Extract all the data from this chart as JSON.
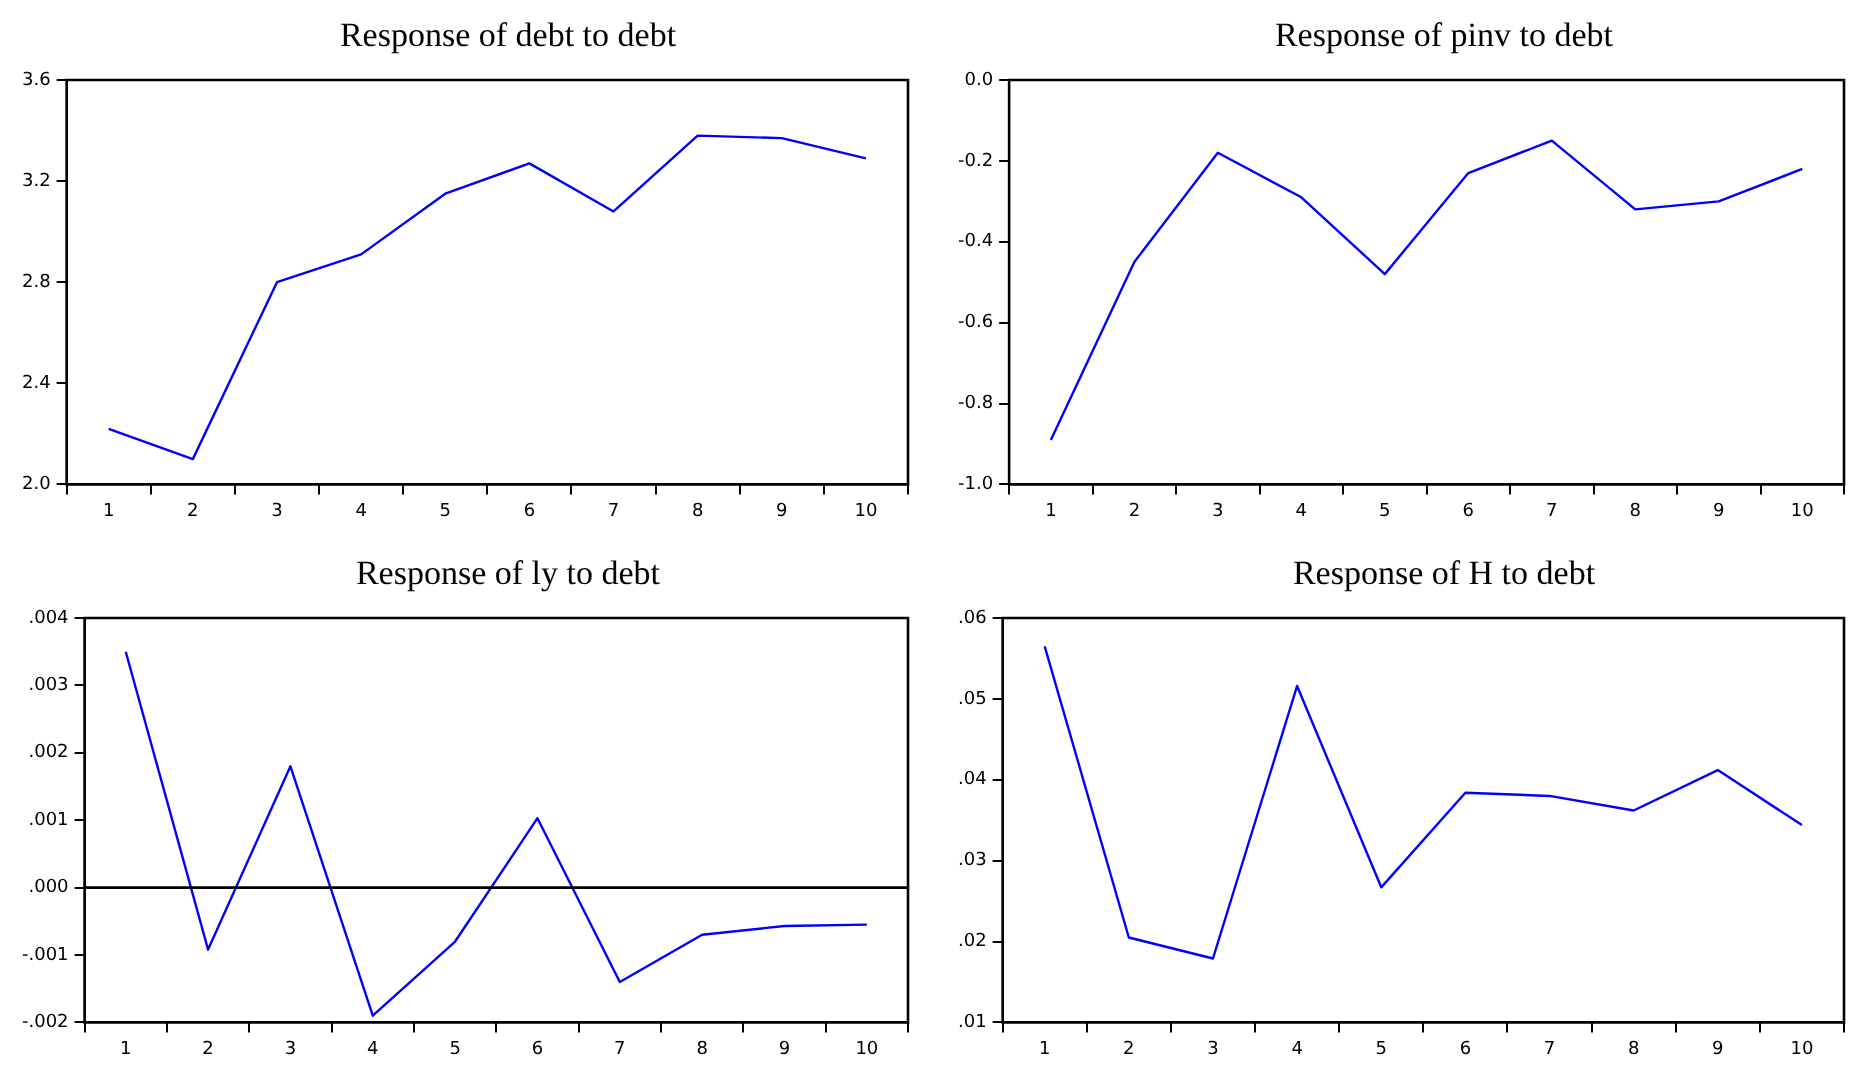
{
  "chart_data": [
    {
      "type": "line",
      "title": "Response of debt to debt",
      "categories": [
        "1",
        "2",
        "3",
        "4",
        "5",
        "6",
        "7",
        "8",
        "9",
        "10"
      ],
      "series": [
        {
          "color": "#0000ff",
          "values": [
            2.22,
            2.1,
            2.8,
            2.91,
            3.15,
            3.27,
            3.08,
            3.38,
            3.37,
            3.29
          ]
        }
      ],
      "ylim": [
        2.0,
        3.6
      ],
      "yticks": [
        {
          "value": 2.0,
          "label": "2.0"
        },
        2.4,
        2.8,
        3.2,
        3.6
      ],
      "grid": false,
      "legend": false
    },
    {
      "type": "line",
      "title": "Response of pinv to debt",
      "categories": [
        "1",
        "2",
        "3",
        "4",
        "5",
        "6",
        "7",
        "8",
        "9",
        "10"
      ],
      "series": [
        {
          "color": "#0000ff",
          "values": [
            -0.89,
            -0.45,
            -0.18,
            -0.29,
            -0.48,
            -0.23,
            -0.15,
            -0.32,
            -0.3,
            -0.22
          ]
        }
      ],
      "ylim": [
        -1.0,
        0.0
      ],
      "yticks": [
        {
          "value": -1.0,
          "label": "-1.0"
        },
        -0.8,
        -0.6,
        -0.4,
        -0.2,
        {
          "value": 0,
          "label": "0.0"
        }
      ],
      "grid": false,
      "legend": false
    },
    {
      "type": "line",
      "title": "Response of ly to debt",
      "categories": [
        "1",
        "2",
        "3",
        "4",
        "5",
        "6",
        "7",
        "8",
        "9",
        "10"
      ],
      "series": [
        {
          "color": "#0000ff",
          "values": [
            0.0035,
            -0.00092,
            0.0018,
            -0.0019,
            -0.0008,
            0.00103,
            -0.0014,
            -0.0007,
            -0.00057,
            -0.00055
          ]
        }
      ],
      "ylim": [
        -0.002,
        0.004
      ],
      "yticks": [
        {
          "value": -0.002,
          "label": "-.002"
        },
        {
          "value": -0.001,
          "label": "-.001"
        },
        {
          "value": 0,
          "label": ".000"
        },
        {
          "value": 0.001,
          "label": ".001"
        },
        {
          "value": 0.002,
          "label": ".002"
        },
        {
          "value": 0.003,
          "label": ".003"
        },
        {
          "value": 0.004,
          "label": ".004"
        }
      ],
      "ref_lines": [
        {
          "axis": "y",
          "value": 0,
          "color": "#000000"
        }
      ],
      "grid": false,
      "legend": false
    },
    {
      "type": "line",
      "title": "Response of H to debt",
      "categories": [
        "1",
        "2",
        "3",
        "4",
        "5",
        "6",
        "7",
        "8",
        "9",
        "10"
      ],
      "series": [
        {
          "color": "#0000ff",
          "values": [
            0.0565,
            0.0205,
            0.0179,
            0.0516,
            0.0267,
            0.0384,
            0.038,
            0.0362,
            0.0412,
            0.0344
          ]
        }
      ],
      "ylim": [
        0.01,
        0.06
      ],
      "yticks": [
        {
          "value": 0.01,
          "label": ".01"
        },
        {
          "value": 0.02,
          "label": ".02"
        },
        {
          "value": 0.03,
          "label": ".03"
        },
        {
          "value": 0.04,
          "label": ".04"
        },
        {
          "value": 0.05,
          "label": ".05"
        },
        {
          "value": 0.06,
          "label": ".06"
        }
      ],
      "grid": false,
      "legend": false
    }
  ]
}
